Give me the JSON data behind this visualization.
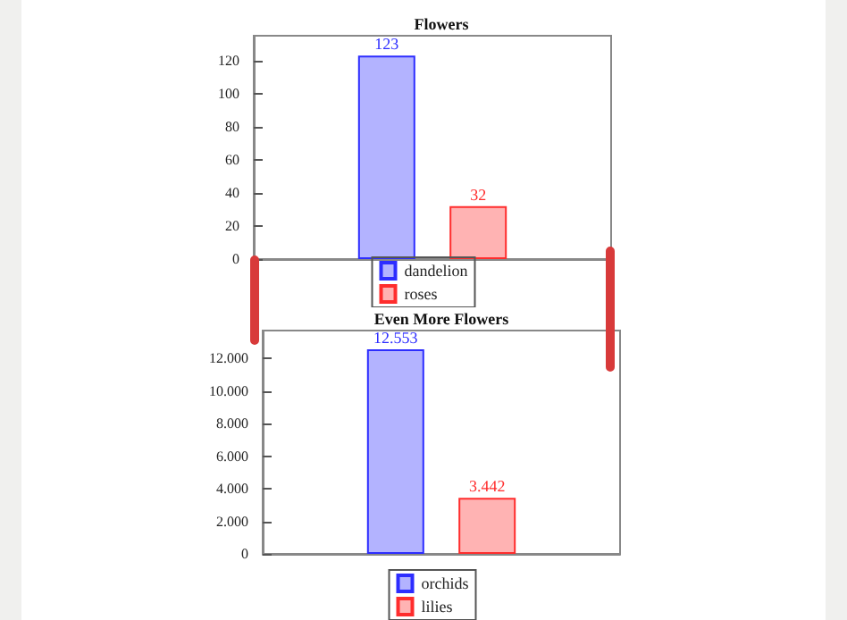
{
  "chart_data": [
    {
      "type": "bar",
      "title": "Flowers",
      "categories": [
        null
      ],
      "series": [
        {
          "name": "dandelion",
          "color": "#b3b3ff",
          "values": [
            123
          ]
        },
        {
          "name": "roses",
          "color": "#ffb3b3",
          "values": [
            32
          ]
        }
      ],
      "ylim": [
        0,
        135
      ],
      "yticks": [
        0,
        20,
        40,
        60,
        80,
        100,
        120
      ],
      "data_labels": true,
      "legend": "bottom"
    },
    {
      "type": "bar",
      "title": "Even More Flowers",
      "categories": [
        null
      ],
      "series": [
        {
          "name": "orchids",
          "color": "#b3b3ff",
          "values": [
            12553
          ],
          "value_labels": [
            "12.553"
          ]
        },
        {
          "name": "lilies",
          "color": "#ffb3b3",
          "values": [
            3442
          ],
          "value_labels": [
            "3.442"
          ]
        }
      ],
      "ylim": [
        0,
        13700
      ],
      "yticks": [
        0,
        {
          "value": 2000,
          "label": "2.000"
        },
        {
          "value": 4000,
          "label": "4.000"
        },
        {
          "value": 6000,
          "label": "6.000"
        },
        {
          "value": 8000,
          "label": "8.000"
        },
        {
          "value": 10000,
          "label": "10.000"
        },
        {
          "value": 12000,
          "label": "12.000"
        }
      ],
      "legend": "bottom"
    }
  ]
}
